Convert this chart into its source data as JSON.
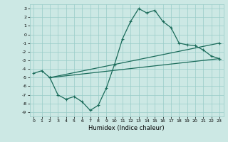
{
  "xlabel": "Humidex (Indice chaleur)",
  "xlim": [
    -0.5,
    23.5
  ],
  "ylim": [
    -9.5,
    3.5
  ],
  "xticks": [
    0,
    1,
    2,
    3,
    4,
    5,
    6,
    7,
    8,
    9,
    10,
    11,
    12,
    13,
    14,
    15,
    16,
    17,
    18,
    19,
    20,
    21,
    22,
    23
  ],
  "yticks": [
    3,
    2,
    1,
    0,
    -1,
    -2,
    -3,
    -4,
    -5,
    -6,
    -7,
    -8,
    -9
  ],
  "bg_color": "#cce8e4",
  "grid_color": "#99ccc8",
  "line_color": "#1a6b5a",
  "line1_x": [
    0,
    1,
    2,
    3,
    4,
    5,
    6,
    7,
    8,
    9,
    10,
    11,
    12,
    13,
    14,
    15,
    16,
    17,
    18,
    19,
    20,
    21,
    22,
    23
  ],
  "line1_y": [
    -4.5,
    -4.2,
    -5.0,
    -7.0,
    -7.5,
    -7.2,
    -7.8,
    -8.8,
    -8.2,
    -6.2,
    -3.5,
    -0.5,
    1.5,
    3.0,
    2.5,
    2.8,
    1.5,
    0.8,
    -1.0,
    -1.2,
    -1.3,
    -1.8,
    -2.5,
    -2.8
  ],
  "line2_x": [
    2,
    23
  ],
  "line2_y": [
    -5.0,
    -2.8
  ],
  "line3_x": [
    2,
    23
  ],
  "line3_y": [
    -5.0,
    -1.0
  ],
  "lw": 0.9
}
